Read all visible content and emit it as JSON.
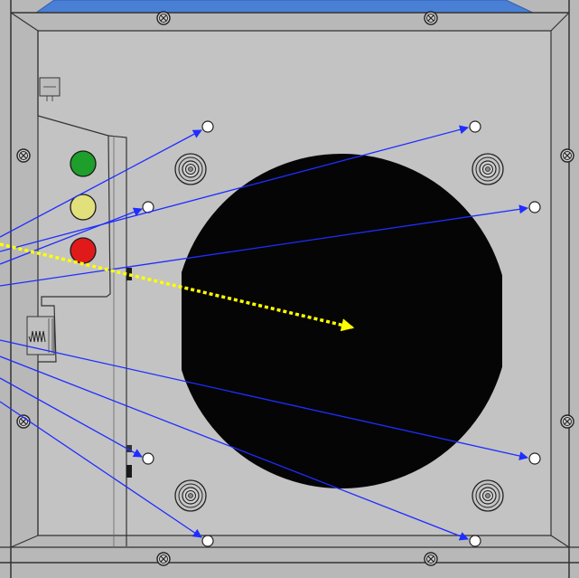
{
  "colors": {
    "panel": "#c2c2c2",
    "panel_inner": "#bdbdbd",
    "frame": "#b5b5b5",
    "outline": "#2a2a2a",
    "opening": "#050505",
    "annotation_blue": "#1f2dff",
    "annotation_yellow": "#ffff00",
    "tab_blue": "#4a7fd6",
    "led_green": "#1e9e2a",
    "led_yellow": "#e2e07a",
    "led_red": "#e01a1a"
  },
  "panel": {
    "indicator_lights": [
      {
        "name": "green-led",
        "color_key": "led_green"
      },
      {
        "name": "yellow-led",
        "color_key": "led_yellow"
      },
      {
        "name": "red-led",
        "color_key": "led_red"
      }
    ],
    "mounting_holes": [
      "hole-top-left",
      "hole-top-right",
      "hole-mid-left",
      "hole-right-upper",
      "hole-lower-left",
      "hole-right-lower",
      "hole-bottom-left",
      "hole-bottom-right"
    ],
    "callout_arrows": {
      "blue_count": 8,
      "yellow_count": 1
    }
  }
}
